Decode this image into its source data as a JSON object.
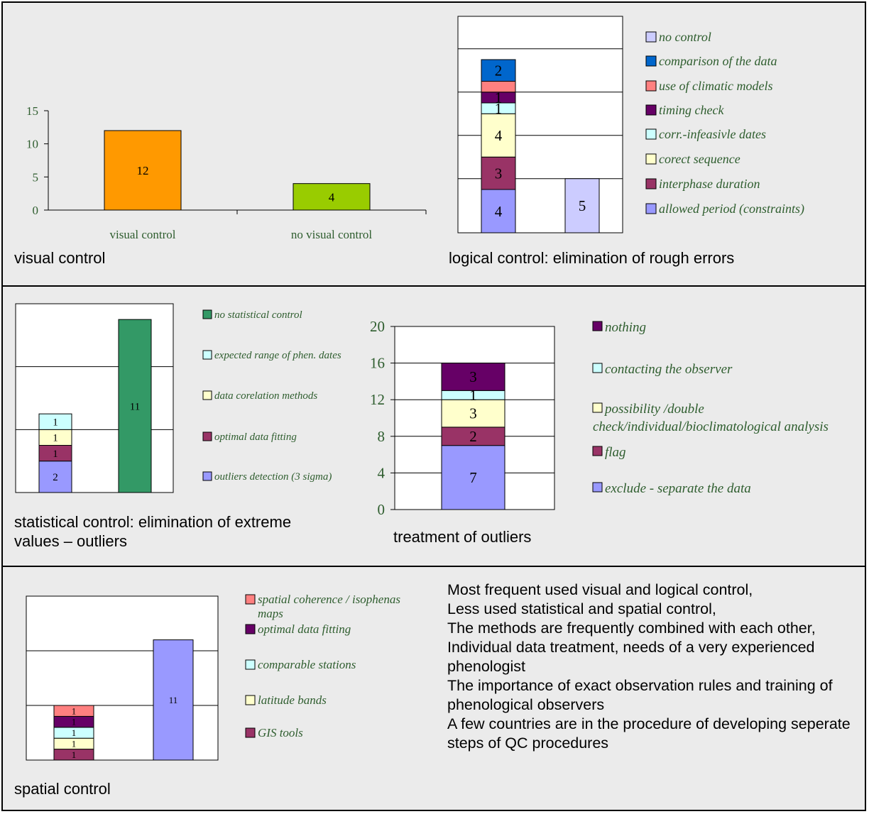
{
  "chart_data": [
    {
      "id": "visual",
      "type": "bar",
      "categories": [
        "visual control",
        "no visual control"
      ],
      "values": [
        12,
        4
      ],
      "colors": [
        "#ff9900",
        "#99cc00"
      ],
      "yticks": [
        0,
        5,
        10,
        15
      ],
      "ylim": [
        0,
        15
      ],
      "caption": "visual control"
    },
    {
      "id": "logical",
      "type": "bar",
      "stacked": true,
      "ylim": [
        0,
        20
      ],
      "series": [
        {
          "name": "allowed period (constraints)",
          "color": "#9999ff",
          "values": [
            4,
            0
          ]
        },
        {
          "name": "interphase duration",
          "color": "#993366",
          "values": [
            3,
            0
          ]
        },
        {
          "name": "corect sequence",
          "color": "#ffffcc",
          "values": [
            4,
            0
          ]
        },
        {
          "name": "corr.-infeasivle dates",
          "color": "#ccffff",
          "values": [
            1,
            0
          ]
        },
        {
          "name": "timing check",
          "color": "#660066",
          "values": [
            1,
            0
          ]
        },
        {
          "name": "use of climatic models",
          "color": "#ff8080",
          "values": [
            1,
            0
          ]
        },
        {
          "name": "comparison of the data",
          "color": "#0066cc",
          "values": [
            2,
            0
          ]
        },
        {
          "name": "no control",
          "color": "#ccccff",
          "values": [
            0,
            5
          ]
        }
      ],
      "bar_labels": [
        {
          "bar": 0,
          "series": 0,
          "text": "4"
        },
        {
          "bar": 0,
          "series": 1,
          "text": "3"
        },
        {
          "bar": 0,
          "series": 2,
          "text": "4"
        },
        {
          "bar": 0,
          "series": 3,
          "text": "1"
        },
        {
          "bar": 0,
          "series": 4,
          "text": "1"
        },
        {
          "bar": 0,
          "series": 6,
          "text": "2"
        },
        {
          "bar": 1,
          "series": 7,
          "text": "5"
        }
      ],
      "caption": "logical control: elimination of rough errors"
    },
    {
      "id": "statistical",
      "type": "bar",
      "stacked": true,
      "ylim": [
        0,
        12
      ],
      "series": [
        {
          "name": "outliers detection (3 sigma)",
          "color": "#9999ff",
          "values": [
            2,
            0
          ]
        },
        {
          "name": "optimal data fitting",
          "color": "#993366",
          "values": [
            1,
            0
          ]
        },
        {
          "name": "data corelation methods",
          "color": "#ffffcc",
          "values": [
            1,
            0
          ]
        },
        {
          "name": "expected range of phen. dates",
          "color": "#ccffff",
          "values": [
            1,
            0
          ]
        },
        {
          "name": "no statistical control",
          "color": "#339966",
          "values": [
            0,
            11
          ]
        }
      ],
      "caption": "statistical control: elimination of extreme values – outliers"
    },
    {
      "id": "outliers",
      "type": "bar",
      "stacked": true,
      "ylim": [
        0,
        20
      ],
      "yticks": [
        0,
        4,
        8,
        12,
        16,
        20
      ],
      "series": [
        {
          "name": "exclude - separate the data",
          "color": "#9999ff",
          "values": [
            7
          ]
        },
        {
          "name": "flag",
          "color": "#993366",
          "values": [
            2
          ]
        },
        {
          "name": "possibility /double check/individual/bioclimatological analysis",
          "color": "#ffffcc",
          "values": [
            3
          ]
        },
        {
          "name": "contacting the observer",
          "color": "#ccffff",
          "values": [
            1
          ]
        },
        {
          "name": "nothing",
          "color": "#660066",
          "values": [
            3
          ]
        }
      ],
      "caption": "treatment of outliers"
    },
    {
      "id": "spatial",
      "type": "bar",
      "stacked": true,
      "ylim": [
        0,
        15
      ],
      "series": [
        {
          "name": "GIS tools",
          "color": "#993366",
          "values": [
            1,
            0
          ]
        },
        {
          "name": "latitude bands",
          "color": "#ffffcc",
          "values": [
            1,
            0
          ]
        },
        {
          "name": "comparable stations",
          "color": "#ccffff",
          "values": [
            1,
            0
          ]
        },
        {
          "name": "optimal data fitting",
          "color": "#660066",
          "values": [
            1,
            0
          ]
        },
        {
          "name": "spatial coherence / isophenas maps",
          "color": "#ff8080",
          "values": [
            1,
            0
          ]
        },
        {
          "name": "",
          "color": "#9999ff",
          "values": [
            0,
            11
          ]
        }
      ],
      "caption": "spatial control"
    }
  ],
  "summary": [
    "Most frequent used visual and logical control,",
    "Less used statistical and spatial control,",
    "The methods are frequently combined with each other,",
    "Individual  data treatment, needs  of a very experienced phenologist",
    "The importance of exact observation rules and training of  phenological observers",
    "A few countries are in the procedure of developing seperate steps of QC procedures"
  ]
}
